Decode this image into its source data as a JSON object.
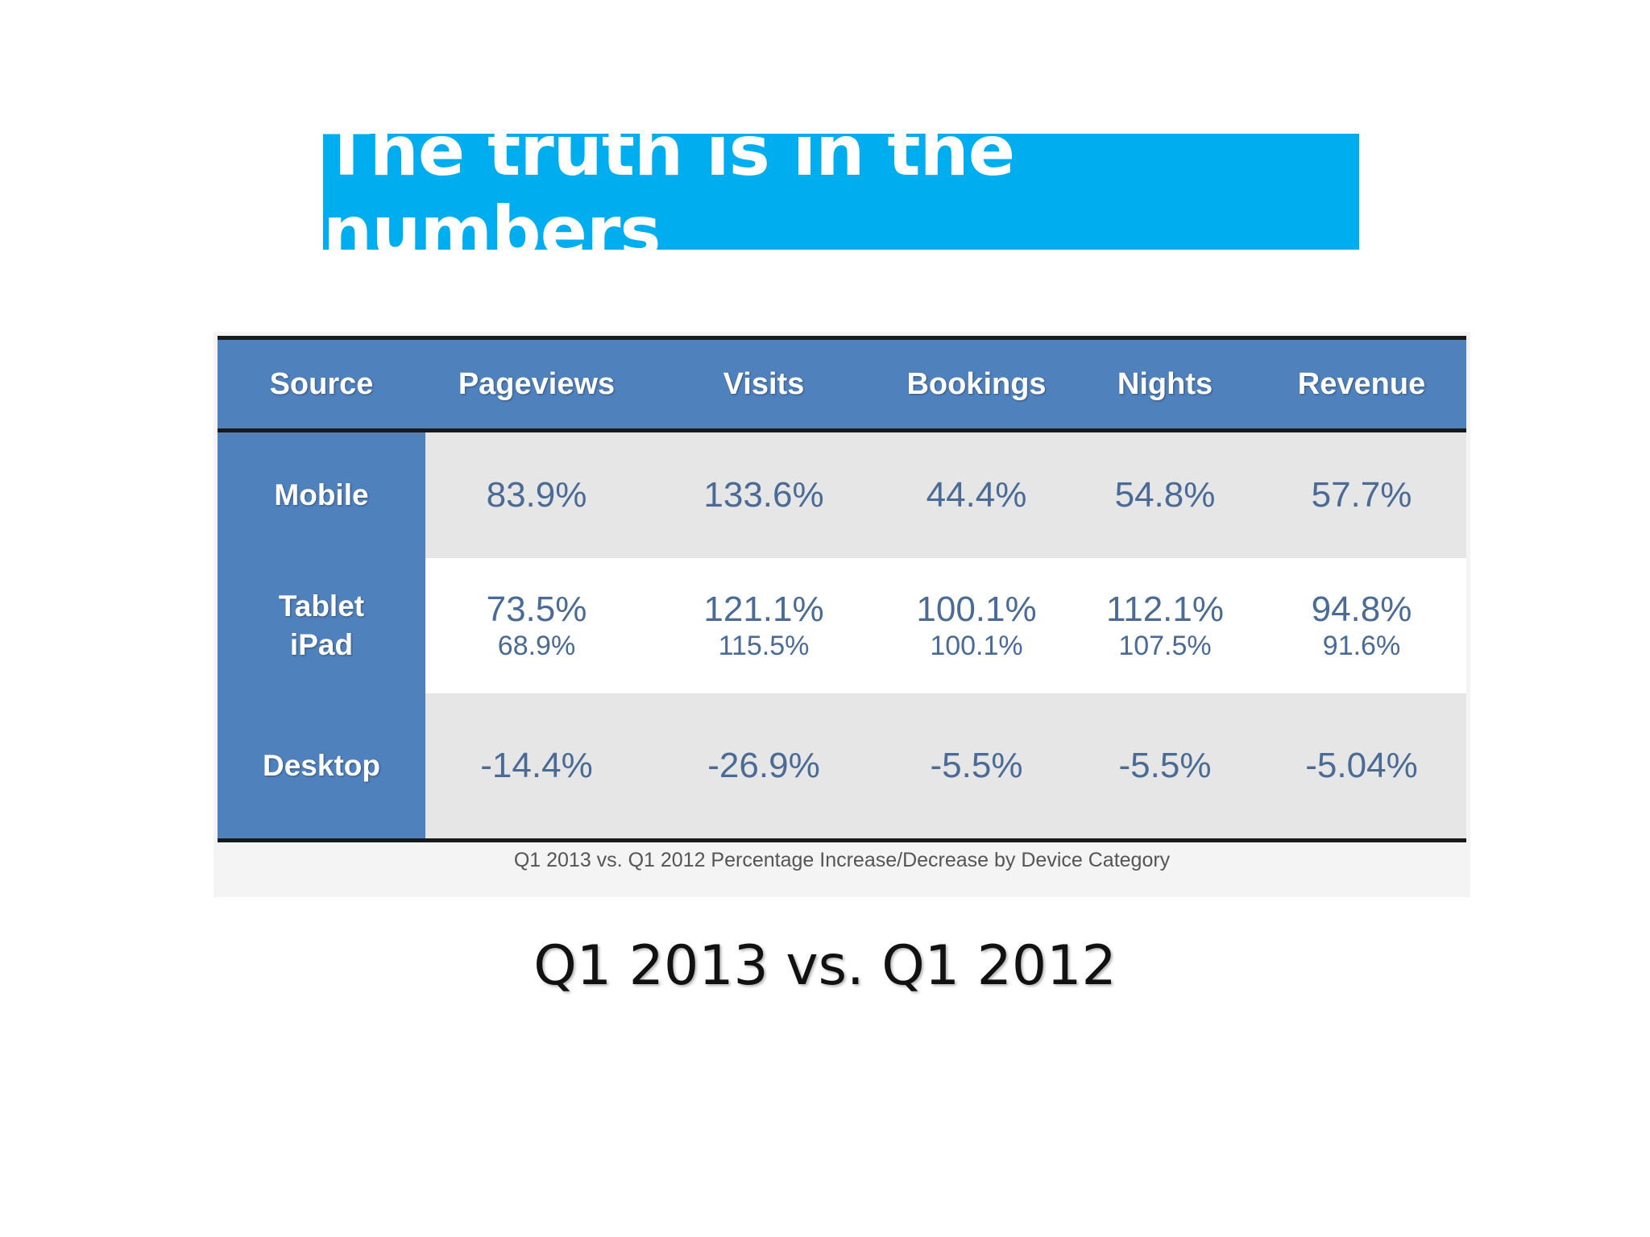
{
  "slide": {
    "title": "The truth is in the numbers",
    "subtitle": "Q1 2013 vs. Q1 2012"
  },
  "colors": {
    "title_bg": "#00aeef",
    "header_bg": "#4f81bd",
    "value_text": "#4a6b96",
    "row_shade": "#e6e6e6"
  },
  "chart_data": {
    "type": "table",
    "caption": "Q1 2013 vs. Q1 2012 Percentage Increase/Decrease by Device Category",
    "columns": [
      "Source",
      "Pageviews",
      "Visits",
      "Bookings",
      "Nights",
      "Revenue"
    ],
    "rows": [
      {
        "source": [
          "Mobile"
        ],
        "values": [
          [
            "83.9%"
          ],
          [
            "133.6%"
          ],
          [
            "44.4%"
          ],
          [
            "54.8%"
          ],
          [
            "57.7%"
          ]
        ]
      },
      {
        "source": [
          "Tablet",
          "iPad"
        ],
        "values": [
          [
            "73.5%",
            "68.9%"
          ],
          [
            "121.1%",
            "115.5%"
          ],
          [
            "100.1%",
            "100.1%"
          ],
          [
            "112.1%",
            "107.5%"
          ],
          [
            "94.8%",
            "91.6%"
          ]
        ]
      },
      {
        "source": [
          "Desktop"
        ],
        "values": [
          [
            "-14.4%"
          ],
          [
            "-26.9%"
          ],
          [
            "-5.5%"
          ],
          [
            "-5.5%"
          ],
          [
            "-5.04%"
          ]
        ]
      }
    ]
  }
}
